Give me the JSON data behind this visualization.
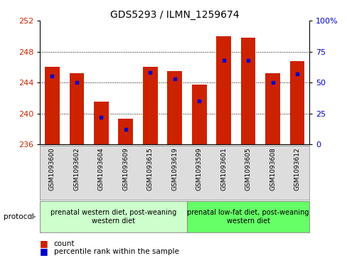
{
  "title": "GDS5293 / ILMN_1259674",
  "samples": [
    "GSM1093600",
    "GSM1093602",
    "GSM1093604",
    "GSM1093609",
    "GSM1093615",
    "GSM1093619",
    "GSM1093599",
    "GSM1093601",
    "GSM1093605",
    "GSM1093608",
    "GSM1093612"
  ],
  "bar_values": [
    246.0,
    245.2,
    241.5,
    239.3,
    246.0,
    245.5,
    243.7,
    250.0,
    249.8,
    245.2,
    246.8
  ],
  "percentiles": [
    55,
    50,
    22,
    12,
    58,
    53,
    35,
    68,
    68,
    50,
    57
  ],
  "ymin": 236,
  "ymax": 252,
  "yticks": [
    236,
    240,
    244,
    248,
    252
  ],
  "right_yticks": [
    0,
    25,
    50,
    75,
    100
  ],
  "bar_color": "#cc2200",
  "percentile_color": "#0000cc",
  "group1_label": "prenatal western diet, post-weaning\nwestern diet",
  "group2_label": "prenatal low-fat diet, post-weaning\nwestern diet",
  "group1_count": 6,
  "group2_count": 5,
  "group1_bg": "#ccffcc",
  "group2_bg": "#66ff66",
  "protocol_label": "protocol",
  "legend_count": "count",
  "legend_percentile": "percentile rank within the sample",
  "bar_width": 0.6,
  "background_color": "#ffffff",
  "tick_label_color_left": "#cc2200",
  "tick_label_color_right": "#0000cc",
  "title_fontsize": 10,
  "tick_fontsize": 8,
  "xtick_fontsize": 6.5,
  "label_fontsize": 7.5,
  "group_fontsize": 7
}
